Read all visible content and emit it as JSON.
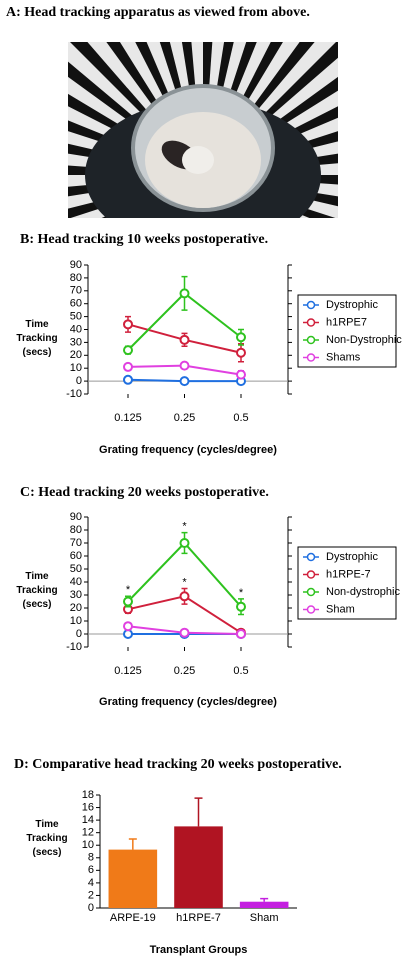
{
  "figure_a": {
    "title": "A: Head tracking apparatus as viewed from above."
  },
  "chart_data": [
    {
      "type": "line",
      "title": "B: Head tracking 10 weeks postoperative.",
      "x_label": "Grating frequency (cycles/degree)",
      "y_label": "Time Tracking (secs)",
      "categories": [
        "0.125",
        "0.25",
        "0.5"
      ],
      "ylim": [
        -10,
        90
      ],
      "yticks": [
        -10,
        0,
        10,
        20,
        30,
        40,
        50,
        60,
        70,
        80,
        90
      ],
      "series": [
        {
          "name": "Dystrophic",
          "color": "#1f6fe0",
          "values": [
            1,
            0,
            0
          ],
          "errors": [
            0.5,
            0.5,
            0.5
          ]
        },
        {
          "name": "h1RPE7",
          "color": "#d0203c",
          "values": [
            44,
            32,
            22
          ],
          "errors": [
            6,
            5,
            7
          ]
        },
        {
          "name": "Non-Dystrophic",
          "color": "#2ec21e",
          "values": [
            24,
            68,
            34
          ],
          "errors": [
            3,
            13,
            6
          ]
        },
        {
          "name": "Shams",
          "color": "#e040e0",
          "values": [
            11,
            12,
            5
          ],
          "errors": [
            1,
            1,
            3
          ]
        }
      ]
    },
    {
      "type": "line",
      "title": "C: Head tracking 20 weeks postoperative.",
      "x_label": "Grating frequency (cycles/degree)",
      "y_label": "Time Tracking (secs)",
      "categories": [
        "0.125",
        "0.25",
        "0.5"
      ],
      "ylim": [
        -10,
        90
      ],
      "yticks": [
        -10,
        0,
        10,
        20,
        30,
        40,
        50,
        60,
        70,
        80,
        90
      ],
      "annotations": [
        "*",
        "*",
        "*",
        "*"
      ],
      "series": [
        {
          "name": "Dystrophic",
          "color": "#1f6fe0",
          "values": [
            0,
            0,
            0
          ],
          "errors": [
            0.5,
            0.5,
            0.5
          ]
        },
        {
          "name": "h1RPE-7",
          "color": "#d0203c",
          "values": [
            19,
            29,
            1
          ],
          "errors": [
            3,
            6,
            1
          ]
        },
        {
          "name": "Non-dystrophic",
          "color": "#2ec21e",
          "values": [
            25,
            70,
            21
          ],
          "errors": [
            4,
            8,
            6
          ]
        },
        {
          "name": "Sham",
          "color": "#e040e0",
          "values": [
            6,
            1,
            0
          ],
          "errors": [
            1,
            1,
            0.5
          ]
        }
      ]
    },
    {
      "type": "bar",
      "title": "D: Comparative head tracking 20 weeks postoperative.",
      "x_label": "Transplant Groups",
      "y_label": "Time Tracking (secs)",
      "categories": [
        "ARPE-19",
        "h1RPE-7",
        "Sham"
      ],
      "values": [
        9.3,
        13,
        1
      ],
      "errors": [
        1.7,
        4.5,
        0.5
      ],
      "colors": [
        "#f07a18",
        "#b01422",
        "#c420e0"
      ],
      "ylim": [
        0,
        18
      ],
      "yticks": [
        0,
        2,
        4,
        6,
        8,
        10,
        12,
        14,
        16,
        18
      ]
    }
  ]
}
